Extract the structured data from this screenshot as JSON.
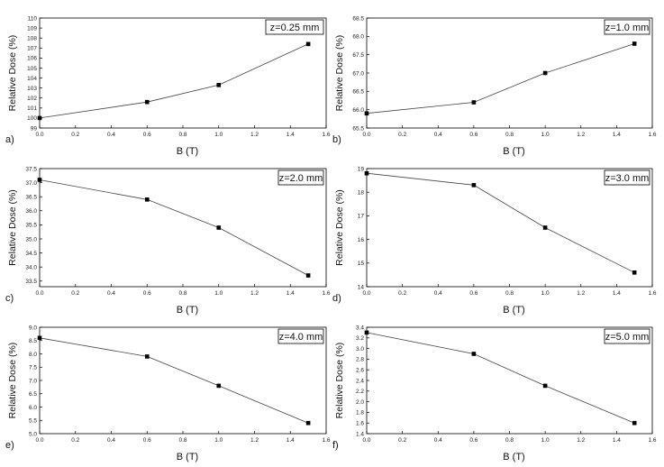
{
  "figure": {
    "panels": 6,
    "layout": "3 rows x 2 columns"
  },
  "chart_data": [
    {
      "type": "line",
      "panel": "a)",
      "title": "z=0.25 mm",
      "xlabel": "B (T)",
      "ylabel": "Relative Dose (%)",
      "x": [
        0.0,
        0.6,
        1.0,
        1.5
      ],
      "y": [
        100.0,
        101.6,
        103.3,
        107.4
      ],
      "xlim": [
        0.0,
        1.6
      ],
      "ylim": [
        99,
        110
      ],
      "xticks": [
        0.0,
        0.2,
        0.4,
        0.6,
        0.8,
        1.0,
        1.2,
        1.4,
        1.6
      ],
      "yticks": [
        99,
        100,
        101,
        102,
        103,
        104,
        105,
        106,
        107,
        108,
        109,
        110
      ],
      "xtick_labels": [
        "0.0",
        "0.2",
        "0.4",
        "0.6",
        "0.8",
        "1.0",
        "1.2",
        "1.4",
        "1.6"
      ],
      "ytick_labels": [
        "99",
        "100",
        "101",
        "102",
        "103",
        "104",
        "105",
        "106",
        "107",
        "108",
        "109",
        "110"
      ],
      "marker": "square",
      "grid": false
    },
    {
      "type": "line",
      "panel": "b)",
      "title": "z=1.0 mm",
      "xlabel": "B (T)",
      "ylabel": "Relative Dose (%)",
      "x": [
        0.0,
        0.6,
        1.0,
        1.5
      ],
      "y": [
        65.9,
        66.2,
        67.0,
        67.8
      ],
      "xlim": [
        0.0,
        1.6
      ],
      "ylim": [
        65.5,
        68.5
      ],
      "xticks": [
        0.0,
        0.2,
        0.4,
        0.6,
        0.8,
        1.0,
        1.2,
        1.4,
        1.6
      ],
      "yticks": [
        65.5,
        66.0,
        66.5,
        67.0,
        67.5,
        68.0,
        68.5
      ],
      "xtick_labels": [
        "0.0",
        "0.2",
        "0.4",
        "0.6",
        "0.8",
        "1.0",
        "1.2",
        "1.4",
        "1.6"
      ],
      "ytick_labels": [
        "65.5",
        "66.0",
        "66.5",
        "67.0",
        "67.5",
        "68.0",
        "68.5"
      ],
      "marker": "square",
      "grid": false
    },
    {
      "type": "line",
      "panel": "c)",
      "title": "z=2.0 mm",
      "xlabel": "B (T)",
      "ylabel": "Relative Dose (%)",
      "x": [
        0.0,
        0.6,
        1.0,
        1.5
      ],
      "y": [
        37.1,
        36.4,
        35.4,
        33.7
      ],
      "xlim": [
        0.0,
        1.6
      ],
      "ylim": [
        33.3,
        37.5
      ],
      "xticks": [
        0.0,
        0.2,
        0.4,
        0.6,
        0.8,
        1.0,
        1.2,
        1.4,
        1.6
      ],
      "yticks": [
        33.5,
        34.0,
        34.5,
        35.0,
        35.5,
        36.0,
        36.5,
        37.0,
        37.5
      ],
      "xtick_labels": [
        "0.0",
        "0.2",
        "0.4",
        "0.6",
        "0.8",
        "1.0",
        "1.2",
        "1.4",
        "1.6"
      ],
      "ytick_labels": [
        "33.5",
        "34.0",
        "34.5",
        "35.0",
        "35.5",
        "36.0",
        "36.5",
        "37.0",
        "37.5"
      ],
      "marker": "square",
      "grid": false
    },
    {
      "type": "line",
      "panel": "d)",
      "title": "z=3.0 mm",
      "xlabel": "B (T)",
      "ylabel": "Relative Dose (%)",
      "x": [
        0.0,
        0.6,
        1.0,
        1.5
      ],
      "y": [
        18.8,
        18.3,
        16.5,
        14.6
      ],
      "xlim": [
        0.0,
        1.6
      ],
      "ylim": [
        14,
        19
      ],
      "xticks": [
        0.0,
        0.2,
        0.4,
        0.6,
        0.8,
        1.0,
        1.2,
        1.4,
        1.6
      ],
      "yticks": [
        14,
        15,
        16,
        17,
        18,
        19
      ],
      "xtick_labels": [
        "0.0",
        "0.2",
        "0.4",
        "0.6",
        "0.8",
        "1.0",
        "1.2",
        "1.4",
        "1.6"
      ],
      "ytick_labels": [
        "14",
        "15",
        "16",
        "17",
        "18",
        "19"
      ],
      "marker": "square",
      "grid": false
    },
    {
      "type": "line",
      "panel": "e)",
      "title": "z=4.0 mm",
      "xlabel": "B (T)",
      "ylabel": "Relative Dose (%)",
      "x": [
        0.0,
        0.6,
        1.0,
        1.5
      ],
      "y": [
        8.6,
        7.9,
        6.8,
        5.4
      ],
      "xlim": [
        0.0,
        1.6
      ],
      "ylim": [
        5.0,
        9.0
      ],
      "xticks": [
        0.0,
        0.2,
        0.4,
        0.6,
        0.8,
        1.0,
        1.2,
        1.4,
        1.6
      ],
      "yticks": [
        5.0,
        5.5,
        6.0,
        6.5,
        7.0,
        7.5,
        8.0,
        8.5,
        9.0
      ],
      "xtick_labels": [
        "0.0",
        "0.2",
        "0.4",
        "0.6",
        "0.8",
        "1.0",
        "1.2",
        "1.4",
        "1.6"
      ],
      "ytick_labels": [
        "5.0",
        "5.5",
        "6.0",
        "6.5",
        "7.0",
        "7.5",
        "8.0",
        "8.5",
        "9.0"
      ],
      "marker": "square",
      "grid": false
    },
    {
      "type": "line",
      "panel": "f)",
      "title": "z=5.0 mm",
      "xlabel": "B (T)",
      "ylabel": "Relative Dose (%)",
      "x": [
        0.0,
        0.6,
        1.0,
        1.5
      ],
      "y": [
        3.3,
        2.9,
        2.3,
        1.6
      ],
      "xlim": [
        0.0,
        1.6
      ],
      "ylim": [
        1.4,
        3.4
      ],
      "xticks": [
        0.0,
        0.2,
        0.4,
        0.6,
        0.8,
        1.0,
        1.2,
        1.4,
        1.6
      ],
      "yticks": [
        1.4,
        1.6,
        1.8,
        2.0,
        2.2,
        2.4,
        2.6,
        2.8,
        3.0,
        3.2,
        3.4
      ],
      "xtick_labels": [
        "0.0",
        "0.2",
        "0.4",
        "0.6",
        "0.8",
        "1.0",
        "1.2",
        "1.4",
        "1.6"
      ],
      "ytick_labels": [
        "1.4",
        "1.6",
        "1.8",
        "2.0",
        "2.2",
        "2.4",
        "2.6",
        "2.8",
        "3.0",
        "3.2",
        "3.4"
      ],
      "marker": "square",
      "grid": false
    }
  ]
}
